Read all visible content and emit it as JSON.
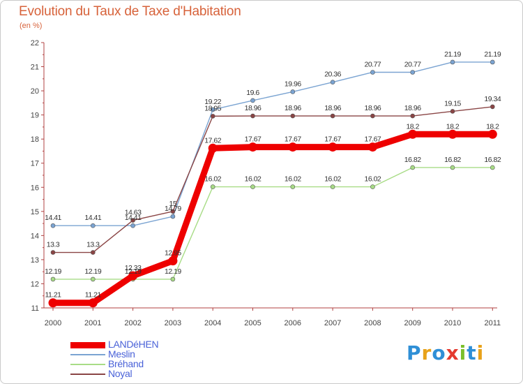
{
  "header": {
    "title": "Evolution du Taux de Taxe d'Habitation",
    "subtitle": "(en %)"
  },
  "logo": {
    "text": "Proxiti",
    "letters": [
      {
        "ch": "P",
        "color": "#2f8fd6"
      },
      {
        "ch": "r",
        "color": "#e8a21a"
      },
      {
        "ch": "o",
        "color": "#2f8fd6"
      },
      {
        "ch": "x",
        "color": "#e43a2f"
      },
      {
        "ch": "i",
        "color": "#7bbf2a"
      },
      {
        "ch": "t",
        "color": "#2f8fd6"
      },
      {
        "ch": "i",
        "color": "#e8a21a"
      }
    ]
  },
  "chart_data": {
    "type": "line",
    "x": [
      "2000",
      "2001",
      "2002",
      "2003",
      "2004",
      "2005",
      "2006",
      "2007",
      "2008",
      "2009",
      "2010",
      "2011"
    ],
    "ylim": [
      11,
      22
    ],
    "yticks": [
      11,
      12,
      13,
      14,
      15,
      16,
      17,
      18,
      19,
      20,
      21,
      22
    ],
    "grid": false,
    "legend": "bottom-left",
    "series": [
      {
        "name": "LANDéHEN",
        "color": "#ee0000",
        "values": [
          11.21,
          11.21,
          12.33,
          12.95,
          17.62,
          17.67,
          17.67,
          17.67,
          17.67,
          18.2,
          18.2,
          18.2
        ],
        "labels": [
          "11.21",
          "11.21",
          "12.33",
          "12.95",
          "17.62",
          "17.67",
          "17.67",
          "17.67",
          "17.67",
          "18.2",
          "18.2",
          "18.2"
        ]
      },
      {
        "name": "Meslin",
        "color": "#7ba4d2",
        "values": [
          14.41,
          14.41,
          14.41,
          14.79,
          19.22,
          19.6,
          19.96,
          20.36,
          20.77,
          20.77,
          21.19,
          21.19
        ],
        "labels": [
          "14.41",
          "14.41",
          "14.41",
          "14.79",
          "19.22",
          "19.6",
          "19.96",
          "20.36",
          "20.77",
          "20.77",
          "21.19",
          "21.19"
        ]
      },
      {
        "name": "Bréhand",
        "color": "#a8dc86",
        "values": [
          12.19,
          12.19,
          12.19,
          12.19,
          16.02,
          16.02,
          16.02,
          16.02,
          16.02,
          16.82,
          16.82,
          16.82
        ],
        "labels": [
          "12.19",
          "12.19",
          "12.19",
          "12.19",
          "16.02",
          "16.02",
          "16.02",
          "16.02",
          "16.02",
          "16.82",
          "16.82",
          "16.82"
        ]
      },
      {
        "name": "Noyal",
        "color": "#8a4545",
        "values": [
          13.3,
          13.3,
          14.63,
          15,
          18.95,
          18.96,
          18.96,
          18.96,
          18.96,
          18.96,
          19.15,
          19.34
        ],
        "labels": [
          "13.3",
          "13.3",
          "14.63",
          "15",
          "18.95",
          "18.96",
          "18.96",
          "18.96",
          "18.96",
          "18.96",
          "19.15",
          "19.34"
        ]
      }
    ]
  }
}
